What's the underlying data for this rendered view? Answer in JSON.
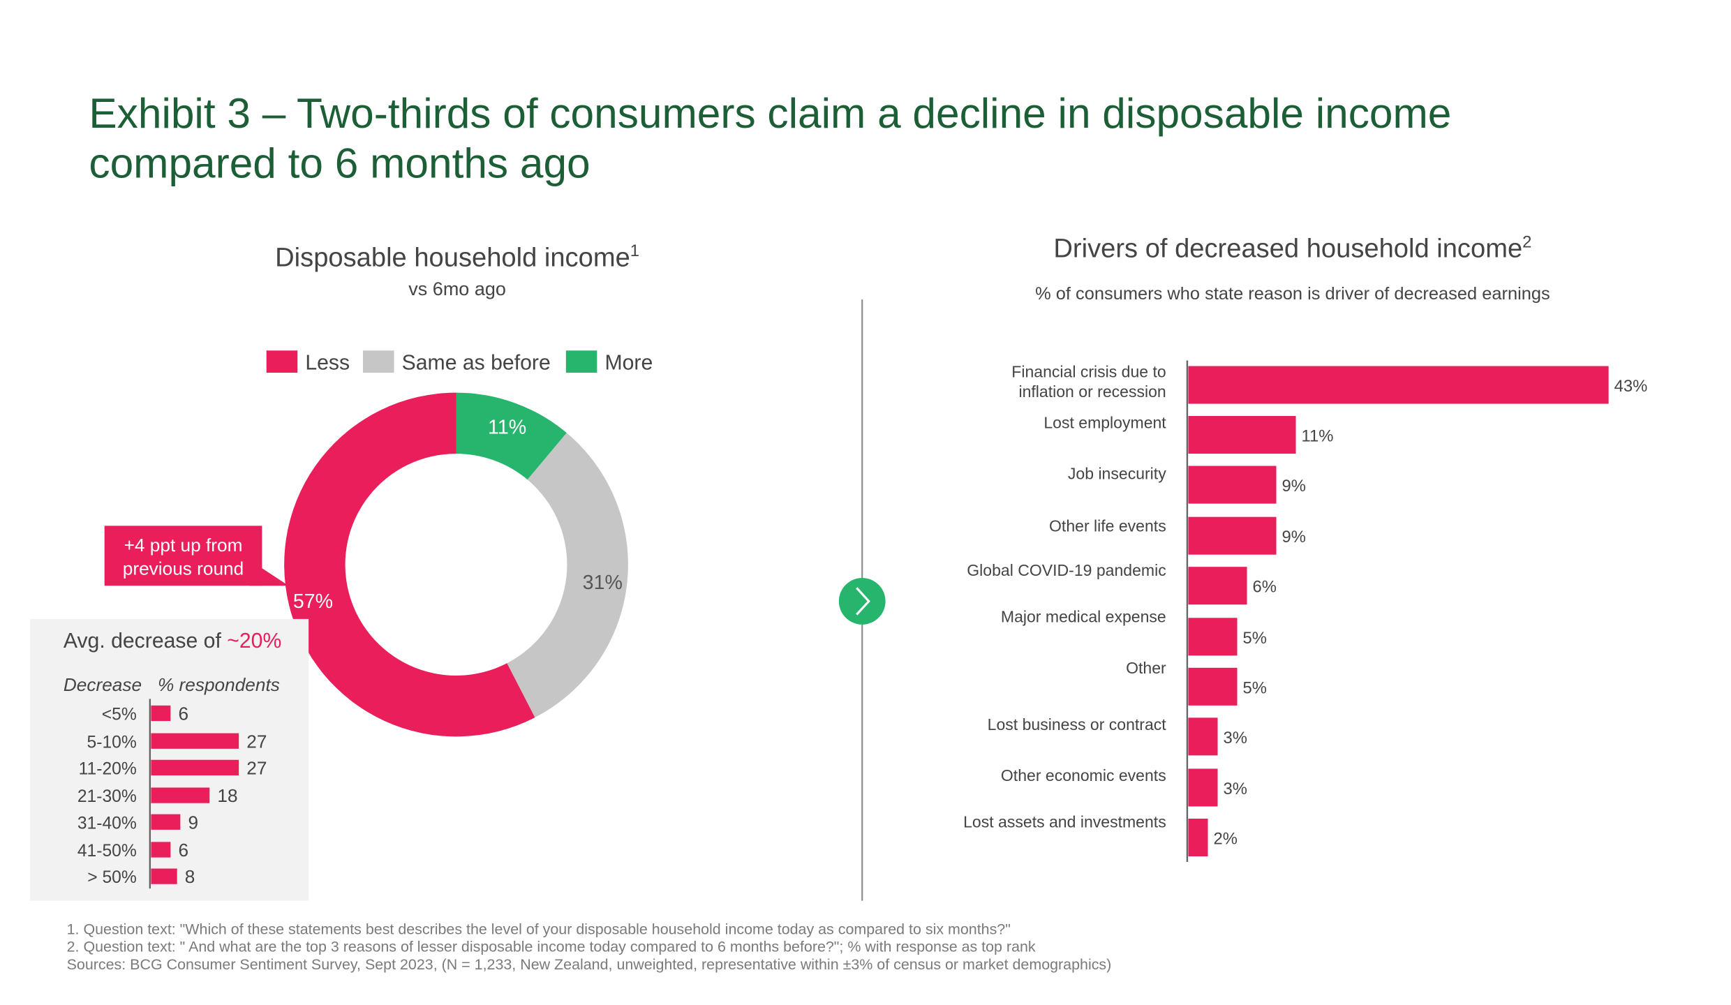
{
  "title_line1": "Exhibit 3 – Two-thirds of consumers claim a decline in disposable income",
  "title_line2": "compared to 6 months ago",
  "colors": {
    "less": "#e91e5a",
    "same": "#c6c6c6",
    "more": "#27b56d",
    "title": "#1c5f36",
    "panel": "#f2f2f2"
  },
  "chart_data": [
    {
      "type": "pie",
      "title": "Disposable household income",
      "title_sup": "1",
      "subtitle": "vs 6mo ago",
      "legend_placement": "top",
      "slices": [
        {
          "name": "More",
          "value": 11,
          "label": "11%"
        },
        {
          "name": "Same as before",
          "value": 31,
          "label": "31%"
        },
        {
          "name": "Less",
          "value": 57,
          "label": "57%"
        }
      ],
      "legend": [
        "Less",
        "Same as before",
        "More"
      ],
      "annotation_line1": "+4 ppt up from",
      "annotation_line2": "previous round"
    },
    {
      "type": "bar",
      "title_prefix": "Avg. decrease of ",
      "title_highlight": "~20%",
      "xlabel": "% respondents",
      "ylabel": "Decrease",
      "categories": [
        "<5%",
        "5-10%",
        "11-20%",
        "21-30%",
        "31-40%",
        "41-50%",
        "> 50%"
      ],
      "values": [
        6,
        27,
        27,
        18,
        9,
        6,
        8
      ],
      "labels": [
        "6",
        "27",
        "27",
        "18",
        "9",
        "6",
        "8"
      ]
    },
    {
      "type": "bar",
      "title": "Drivers of decreased household income",
      "title_sup": "2",
      "subtitle": "% of consumers who state reason is driver of decreased earnings",
      "categories": [
        [
          "Financial crisis due to",
          "inflation or recession"
        ],
        [
          "Lost employment"
        ],
        [
          "Job insecurity"
        ],
        [
          "Other life events"
        ],
        [
          "Global COVID-19 pandemic"
        ],
        [
          "Major medical expense"
        ],
        [
          "Other"
        ],
        [
          "Lost business or contract"
        ],
        [
          "Other economic events"
        ],
        [
          "Lost assets and investments"
        ]
      ],
      "values": [
        43,
        11,
        9,
        9,
        6,
        5,
        5,
        3,
        3,
        2
      ],
      "labels": [
        "43%",
        "11%",
        "9%",
        "9%",
        "6%",
        "5%",
        "5%",
        "3%",
        "3%",
        "2%"
      ]
    }
  ],
  "footnotes": [
    "1. Question text:  \"Which of these statements best describes the level of your disposable household income today as compared to six months?\"",
    "2. Question text: \" And what are the top 3 reasons of lesser disposable income today compared to 6 months before?\"; % with response as top rank",
    "Sources: BCG Consumer Sentiment Survey, Sept 2023, (N =  1,233,  New Zealand,  unweighted, representative within ±3% of census or market demographics)"
  ],
  "icons": {
    "divider_button": "chevron-right-icon"
  }
}
